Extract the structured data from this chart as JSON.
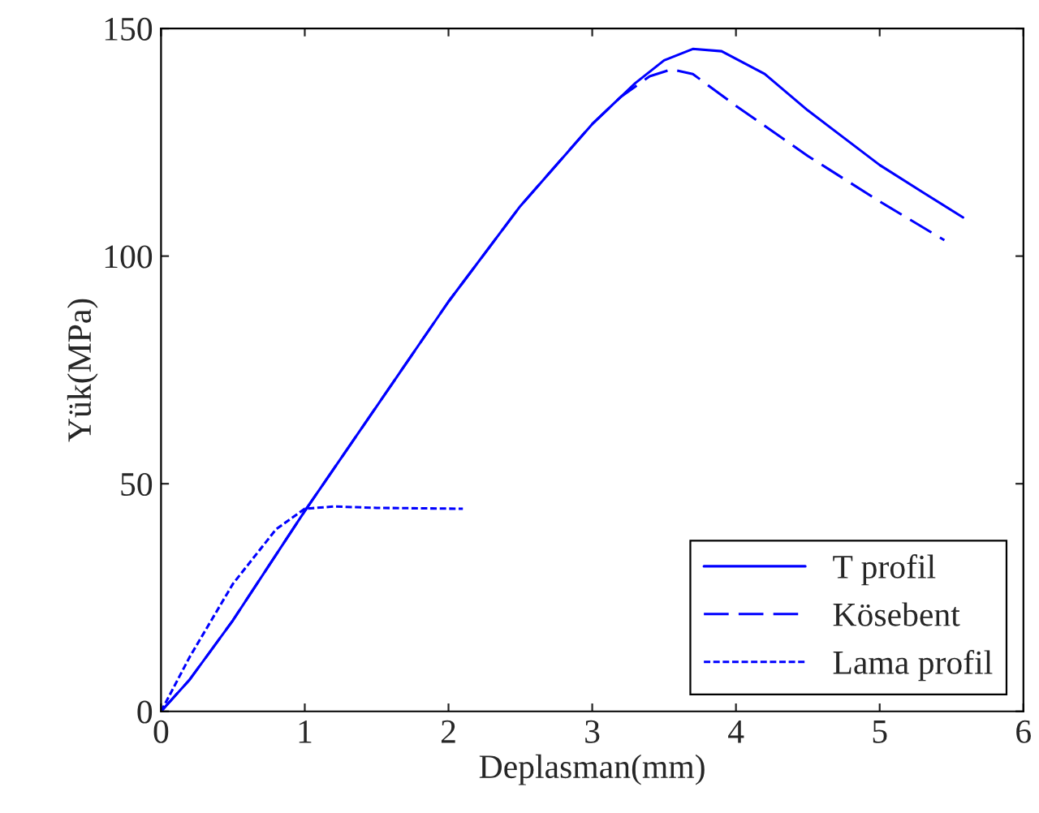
{
  "chart_data": {
    "type": "line",
    "xlabel": "Deplasman(mm)",
    "ylabel": "Yük(MPa)",
    "xlim": [
      0,
      6
    ],
    "ylim": [
      0,
      150
    ],
    "xticks": [
      0,
      1,
      2,
      3,
      4,
      5,
      6
    ],
    "yticks": [
      0,
      50,
      100,
      150
    ],
    "grid": false,
    "legend": "bottom right",
    "marker": "none",
    "series": [
      {
        "name": "T profil",
        "color": "#0000ff",
        "line_style": "solid",
        "x": [
          0,
          0.2,
          0.5,
          1,
          1.5,
          2,
          2.5,
          3,
          3.3,
          3.5,
          3.7,
          3.9,
          4.2,
          4.5,
          5,
          5.3,
          5.58
        ],
        "values": [
          0,
          7,
          20,
          44,
          67,
          90,
          111,
          129,
          138,
          143,
          145.5,
          145,
          140,
          132,
          120,
          114,
          108.5
        ]
      },
      {
        "name": "Kösebent",
        "color": "#0000ff",
        "line_style": "dashed",
        "x": [
          0,
          0.2,
          0.5,
          1,
          1.5,
          2,
          2.5,
          3,
          3.2,
          3.4,
          3.55,
          3.7,
          4,
          4.5,
          5,
          5.45
        ],
        "values": [
          0,
          7,
          20,
          44,
          67,
          90,
          111,
          129,
          135,
          139.5,
          141,
          140,
          133,
          122,
          112,
          103.5
        ]
      },
      {
        "name": "Lama profil",
        "color": "#0000ff",
        "line_style": "dotted",
        "x": [
          0,
          0.2,
          0.5,
          0.8,
          1,
          1.2,
          1.5,
          2.1
        ],
        "values": [
          0,
          12,
          28,
          40,
          44.5,
          45,
          44.7,
          44.5
        ]
      }
    ]
  }
}
